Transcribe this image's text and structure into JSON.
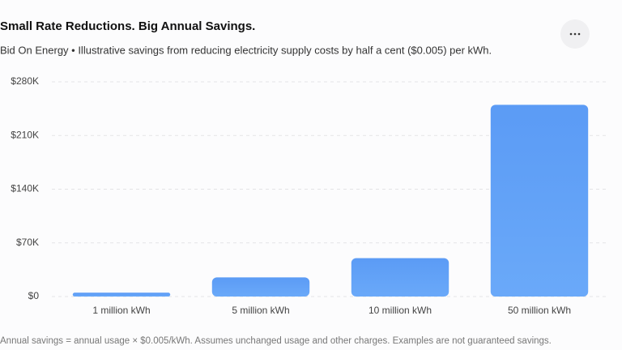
{
  "chart_data": {
    "type": "bar",
    "title": "Small Rate Reductions. Big Annual Savings.",
    "subtitle": "Bid On Energy • Illustrative savings from reducing electricity supply costs by half a cent ($0.005) per kWh.",
    "categories": [
      "1 million kWh",
      "5 million kWh",
      "10 million kWh",
      "50 million kWh"
    ],
    "values": [
      5000,
      25000,
      50000,
      250000
    ],
    "color": "#60a5fa",
    "ylim": [
      0,
      280000
    ],
    "yticks": [
      {
        "value": 0,
        "label": "$0"
      },
      {
        "value": 70000,
        "label": "$70K"
      },
      {
        "value": 140000,
        "label": "$140K"
      },
      {
        "value": 210000,
        "label": "$210K"
      },
      {
        "value": 280000,
        "label": "$280K"
      }
    ],
    "grid": true,
    "footnote": "Annual savings = annual usage × $0.005/kWh. Assumes unchanged usage and other charges. Examples are not guaranteed savings."
  }
}
